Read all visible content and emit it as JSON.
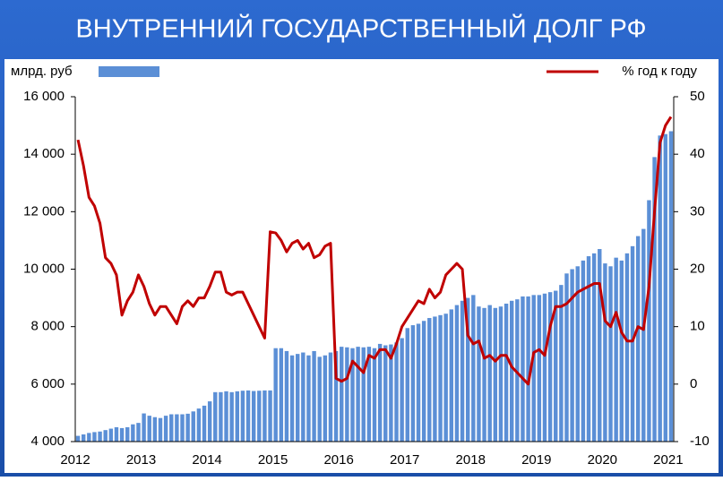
{
  "chart_data": {
    "type": "bar-line",
    "title": "ВНУТРЕННИЙ ГОСУДАРСТВЕННЫЙ ДОЛГ РФ",
    "categories": [
      "2012",
      null,
      null,
      null,
      null,
      null,
      null,
      null,
      null,
      null,
      null,
      null,
      "2013",
      null,
      null,
      null,
      null,
      null,
      null,
      null,
      null,
      null,
      null,
      null,
      "2014",
      null,
      null,
      null,
      null,
      null,
      null,
      null,
      null,
      null,
      null,
      null,
      "2015",
      null,
      null,
      null,
      null,
      null,
      null,
      null,
      null,
      null,
      null,
      null,
      "2016",
      null,
      null,
      null,
      null,
      null,
      null,
      null,
      null,
      null,
      null,
      null,
      "2017",
      null,
      null,
      null,
      null,
      null,
      null,
      null,
      null,
      null,
      null,
      null,
      "2018",
      null,
      null,
      null,
      null,
      null,
      null,
      null,
      null,
      null,
      null,
      null,
      "2019",
      null,
      null,
      null,
      null,
      null,
      null,
      null,
      null,
      null,
      null,
      null,
      "2020",
      null,
      null,
      null,
      null,
      null,
      null,
      null,
      null,
      null,
      null,
      null,
      "2021"
    ],
    "series": [
      {
        "name": "млрд. руб",
        "type": "bar",
        "color": "#5b8fd6",
        "values": [
          4200,
          4250,
          4300,
          4330,
          4350,
          4400,
          4450,
          4500,
          4470,
          4500,
          4600,
          4650,
          4980,
          4900,
          4850,
          4820,
          4900,
          4950,
          4950,
          4950,
          4970,
          5050,
          5150,
          5250,
          5400,
          5720,
          5720,
          5750,
          5720,
          5750,
          5770,
          5780,
          5760,
          5770,
          5780,
          5780,
          7250,
          7250,
          7150,
          7000,
          7050,
          7100,
          7000,
          7150,
          6950,
          7000,
          7100,
          7150,
          7300,
          7280,
          7250,
          7300,
          7280,
          7300,
          7250,
          7400,
          7350,
          7380,
          7450,
          7600,
          7950,
          8050,
          8100,
          8200,
          8300,
          8350,
          8400,
          8450,
          8600,
          8750,
          8900,
          9000,
          9100,
          8700,
          8650,
          8750,
          8650,
          8700,
          8800,
          8900,
          8950,
          9050,
          9050,
          9100,
          9100,
          9150,
          9200,
          9250,
          9450,
          9850,
          10000,
          10100,
          10300,
          10450,
          10550,
          10700,
          10200,
          10100,
          10400,
          10300,
          10550,
          10800,
          11150,
          11400,
          12400,
          13900,
          14650,
          14700,
          14800
        ]
      },
      {
        "name": "% год к году",
        "type": "line",
        "axis": "y2",
        "color": "#c00000",
        "values": [
          42.5,
          38,
          32.5,
          31,
          28,
          22,
          21,
          19,
          12,
          14.5,
          16,
          19,
          17,
          14,
          12,
          13.5,
          13.5,
          12,
          10.5,
          13.5,
          14.5,
          13.5,
          15,
          15,
          17,
          19.5,
          19.5,
          16,
          15.5,
          16,
          16,
          14,
          12,
          10,
          8,
          26.5,
          26.3,
          25,
          23,
          24.5,
          25,
          23.5,
          24.5,
          22,
          22.5,
          24,
          24.5,
          1,
          0.5,
          1,
          4,
          3,
          2,
          5,
          4.5,
          6,
          6,
          4.5,
          7,
          10,
          11.5,
          13,
          14.5,
          14,
          16.5,
          15,
          16,
          19,
          20,
          21,
          20,
          8.5,
          7,
          7.5,
          4.5,
          5,
          4,
          5,
          5,
          3,
          2,
          1,
          0,
          5.5,
          6,
          5,
          10,
          13.5,
          13.5,
          14,
          15,
          16,
          16.5,
          17,
          17.5,
          17.5,
          11,
          10,
          12.5,
          9,
          7.5,
          7.5,
          10,
          9.5,
          17,
          30,
          42,
          45,
          46.5
        ]
      }
    ],
    "ylim": [
      4000,
      16000
    ],
    "yticks": [
      {
        "value": 4000,
        "label": "4 000"
      },
      {
        "value": 6000,
        "label": "6 000"
      },
      {
        "value": 8000,
        "label": "8 000"
      },
      {
        "value": 10000,
        "label": "10 000"
      },
      {
        "value": 12000,
        "label": "12 000"
      },
      {
        "value": 14000,
        "label": "14 000"
      },
      {
        "value": 16000,
        "label": "16 000"
      }
    ],
    "y2lim": [
      -10,
      50
    ],
    "y2ticks": [
      -10,
      0,
      10,
      20,
      30,
      40,
      50
    ]
  }
}
